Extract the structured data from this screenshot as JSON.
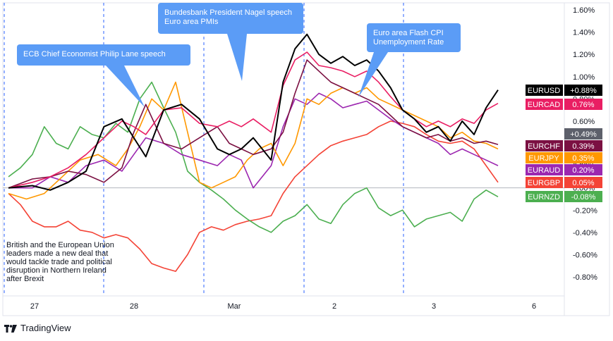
{
  "brand": {
    "name": "TradingView",
    "icon": "tradingview-logo-icon"
  },
  "notes": {
    "brexit": [
      "British and the European Union",
      "leaders made a new deal that",
      "would tackle trade and political",
      "disruption in Northern Ireland",
      "after Brexit"
    ]
  },
  "callouts": [
    {
      "lines": [
        "ECB Chief Economist Philip Lane speech"
      ]
    },
    {
      "lines": [
        "Bundesbank President Nagel speech",
        "Euro area PMIs"
      ]
    },
    {
      "lines": [
        "Euro area Flash CPI",
        "Unemployment Rate"
      ]
    }
  ],
  "colors": {
    "EURUSD": "#000000",
    "EURCAD": "#e91e63",
    "EURCHF": "#7b1042",
    "EURJPY": "#ff9800",
    "EURAUD": "#9c27b0",
    "EURGBP": "#f44336",
    "EURNZD": "#4caf50",
    "callout": "#5b9cf6",
    "separator": "#2962ff"
  },
  "chart_data": {
    "type": "line",
    "x_ticks": [
      "27",
      "28",
      "Mar",
      "2",
      "3",
      "6"
    ],
    "y_ticks": [
      "1.60%",
      "1.40%",
      "1.20%",
      "1.00%",
      "0.80%",
      "0.60%",
      "0.40%",
      "0.20%",
      "0.00%",
      "-0.20%",
      "-0.40%",
      "-0.60%",
      "-0.80%"
    ],
    "y_unit": "%",
    "ylim": [
      -1.06,
      1.6
    ],
    "x_sessions": [
      0,
      4.1
    ],
    "session_separators": [
      0.06,
      1.0,
      1.7,
      2.7,
      3.7
    ],
    "hidden_label": "+0.49%",
    "legend": [
      {
        "pair": "EURUSD",
        "value": "+0.88%"
      },
      {
        "pair": "EURCAD",
        "value": "0.76%"
      },
      {
        "pair": "EURCHF",
        "value": "0.39%"
      },
      {
        "pair": "EURJPY",
        "value": "0.35%"
      },
      {
        "pair": "EURAUD",
        "value": "0.20%"
      },
      {
        "pair": "EURGBP",
        "value": "0.05%"
      },
      {
        "pair": "EURNZD",
        "value": "-0.08%"
      }
    ],
    "series": [
      {
        "name": "EURUSD",
        "points": [
          [
            0,
            0.0
          ],
          [
            0.2,
            0.02
          ],
          [
            0.35,
            -0.02
          ],
          [
            0.5,
            0.05
          ],
          [
            0.65,
            0.15
          ],
          [
            0.8,
            0.55
          ],
          [
            0.95,
            0.62
          ],
          [
            1.05,
            0.45
          ],
          [
            1.15,
            0.28
          ],
          [
            1.3,
            0.7
          ],
          [
            1.45,
            0.75
          ],
          [
            1.6,
            0.62
          ],
          [
            1.75,
            0.35
          ],
          [
            1.85,
            0.3
          ],
          [
            1.95,
            0.35
          ],
          [
            2.05,
            0.45
          ],
          [
            2.2,
            0.25
          ],
          [
            2.3,
            0.95
          ],
          [
            2.4,
            1.25
          ],
          [
            2.5,
            1.38
          ],
          [
            2.6,
            1.2
          ],
          [
            2.7,
            1.12
          ],
          [
            2.8,
            1.18
          ],
          [
            2.9,
            1.1
          ],
          [
            3.0,
            1.15
          ],
          [
            3.1,
            1.05
          ],
          [
            3.2,
            0.9
          ],
          [
            3.3,
            0.7
          ],
          [
            3.4,
            0.62
          ],
          [
            3.5,
            0.5
          ],
          [
            3.6,
            0.55
          ],
          [
            3.7,
            0.42
          ],
          [
            3.8,
            0.6
          ],
          [
            3.9,
            0.48
          ],
          [
            4.0,
            0.72
          ],
          [
            4.1,
            0.88
          ]
        ]
      },
      {
        "name": "EURCAD",
        "points": [
          [
            0,
            0.0
          ],
          [
            0.2,
            0.05
          ],
          [
            0.35,
            0.1
          ],
          [
            0.5,
            0.18
          ],
          [
            0.65,
            0.3
          ],
          [
            0.8,
            0.45
          ],
          [
            0.95,
            0.6
          ],
          [
            1.05,
            0.55
          ],
          [
            1.15,
            0.48
          ],
          [
            1.3,
            0.7
          ],
          [
            1.45,
            0.72
          ],
          [
            1.6,
            0.58
          ],
          [
            1.75,
            0.55
          ],
          [
            1.85,
            0.6
          ],
          [
            1.95,
            0.55
          ],
          [
            2.05,
            0.62
          ],
          [
            2.2,
            0.5
          ],
          [
            2.3,
            0.92
          ],
          [
            2.4,
            1.15
          ],
          [
            2.5,
            1.22
          ],
          [
            2.6,
            1.1
          ],
          [
            2.7,
            1.08
          ],
          [
            2.8,
            1.05
          ],
          [
            2.9,
            1.0
          ],
          [
            3.0,
            1.05
          ],
          [
            3.1,
            0.95
          ],
          [
            3.2,
            0.82
          ],
          [
            3.3,
            0.7
          ],
          [
            3.4,
            0.62
          ],
          [
            3.5,
            0.55
          ],
          [
            3.6,
            0.6
          ],
          [
            3.7,
            0.55
          ],
          [
            3.8,
            0.62
          ],
          [
            3.9,
            0.58
          ],
          [
            4.0,
            0.7
          ],
          [
            4.1,
            0.76
          ]
        ]
      },
      {
        "name": "EURCHF",
        "points": [
          [
            0,
            0.0
          ],
          [
            0.2,
            0.08
          ],
          [
            0.35,
            0.1
          ],
          [
            0.5,
            0.15
          ],
          [
            0.65,
            0.12
          ],
          [
            0.8,
            0.05
          ],
          [
            0.95,
            0.18
          ],
          [
            1.05,
            0.5
          ],
          [
            1.15,
            0.75
          ],
          [
            1.3,
            0.4
          ],
          [
            1.45,
            0.35
          ],
          [
            1.6,
            0.45
          ],
          [
            1.75,
            0.55
          ],
          [
            1.85,
            0.4
          ],
          [
            1.95,
            0.35
          ],
          [
            2.05,
            0.3
          ],
          [
            2.2,
            0.35
          ],
          [
            2.3,
            0.5
          ],
          [
            2.4,
            0.85
          ],
          [
            2.5,
            1.15
          ],
          [
            2.6,
            1.05
          ],
          [
            2.7,
            0.95
          ],
          [
            2.8,
            0.9
          ],
          [
            2.9,
            0.85
          ],
          [
            3.0,
            0.8
          ],
          [
            3.1,
            0.75
          ],
          [
            3.2,
            0.65
          ],
          [
            3.3,
            0.55
          ],
          [
            3.4,
            0.5
          ],
          [
            3.5,
            0.45
          ],
          [
            3.6,
            0.48
          ],
          [
            3.7,
            0.42
          ],
          [
            3.8,
            0.45
          ],
          [
            3.9,
            0.4
          ],
          [
            4.0,
            0.42
          ],
          [
            4.1,
            0.39
          ]
        ]
      },
      {
        "name": "EURJPY",
        "points": [
          [
            0,
            -0.05
          ],
          [
            0.15,
            -0.1
          ],
          [
            0.3,
            -0.05
          ],
          [
            0.45,
            0.1
          ],
          [
            0.6,
            0.25
          ],
          [
            0.75,
            0.3
          ],
          [
            0.9,
            0.2
          ],
          [
            1.0,
            0.35
          ],
          [
            1.1,
            0.55
          ],
          [
            1.2,
            0.8
          ],
          [
            1.3,
            0.7
          ],
          [
            1.4,
            0.95
          ],
          [
            1.5,
            0.5
          ],
          [
            1.6,
            0.05
          ],
          [
            1.7,
            0.0
          ],
          [
            1.8,
            0.05
          ],
          [
            1.9,
            0.1
          ],
          [
            2.0,
            0.25
          ],
          [
            2.1,
            0.35
          ],
          [
            2.2,
            0.4
          ],
          [
            2.3,
            0.2
          ],
          [
            2.4,
            0.4
          ],
          [
            2.5,
            0.8
          ],
          [
            2.6,
            0.75
          ],
          [
            2.7,
            0.85
          ],
          [
            2.8,
            0.9
          ],
          [
            2.9,
            0.85
          ],
          [
            3.0,
            0.9
          ],
          [
            3.1,
            0.8
          ],
          [
            3.2,
            0.75
          ],
          [
            3.3,
            0.7
          ],
          [
            3.4,
            0.65
          ],
          [
            3.5,
            0.6
          ],
          [
            3.6,
            0.55
          ],
          [
            3.7,
            0.45
          ],
          [
            3.8,
            0.5
          ],
          [
            3.9,
            0.42
          ],
          [
            4.0,
            0.4
          ],
          [
            4.1,
            0.35
          ]
        ]
      },
      {
        "name": "EURAUD",
        "points": [
          [
            0,
            0.0
          ],
          [
            0.2,
            0.0
          ],
          [
            0.35,
            0.1
          ],
          [
            0.5,
            0.05
          ],
          [
            0.65,
            0.2
          ],
          [
            0.8,
            0.25
          ],
          [
            0.95,
            0.15
          ],
          [
            1.05,
            0.3
          ],
          [
            1.15,
            0.45
          ],
          [
            1.3,
            0.4
          ],
          [
            1.45,
            0.3
          ],
          [
            1.6,
            0.25
          ],
          [
            1.75,
            0.2
          ],
          [
            1.85,
            0.3
          ],
          [
            1.95,
            0.25
          ],
          [
            2.05,
            0.0
          ],
          [
            2.2,
            0.2
          ],
          [
            2.3,
            0.55
          ],
          [
            2.4,
            0.8
          ],
          [
            2.5,
            0.75
          ],
          [
            2.6,
            0.85
          ],
          [
            2.7,
            0.8
          ],
          [
            2.8,
            0.72
          ],
          [
            2.9,
            0.75
          ],
          [
            3.0,
            0.78
          ],
          [
            3.1,
            0.7
          ],
          [
            3.2,
            0.62
          ],
          [
            3.3,
            0.55
          ],
          [
            3.4,
            0.5
          ],
          [
            3.5,
            0.45
          ],
          [
            3.6,
            0.4
          ],
          [
            3.7,
            0.3
          ],
          [
            3.8,
            0.35
          ],
          [
            3.9,
            0.3
          ],
          [
            4.0,
            0.25
          ],
          [
            4.1,
            0.2
          ]
        ]
      },
      {
        "name": "EURGBP",
        "points": [
          [
            0,
            -0.05
          ],
          [
            0.1,
            -0.15
          ],
          [
            0.2,
            -0.3
          ],
          [
            0.3,
            -0.35
          ],
          [
            0.4,
            -0.35
          ],
          [
            0.5,
            -0.3
          ],
          [
            0.6,
            -0.38
          ],
          [
            0.7,
            -0.4
          ],
          [
            0.8,
            -0.45
          ],
          [
            0.9,
            -0.42
          ],
          [
            1.0,
            -0.45
          ],
          [
            1.1,
            -0.55
          ],
          [
            1.2,
            -0.68
          ],
          [
            1.3,
            -0.72
          ],
          [
            1.4,
            -0.75
          ],
          [
            1.5,
            -0.6
          ],
          [
            1.6,
            -0.4
          ],
          [
            1.7,
            -0.35
          ],
          [
            1.8,
            -0.38
          ],
          [
            1.9,
            -0.33
          ],
          [
            2.0,
            -0.3
          ],
          [
            2.1,
            -0.28
          ],
          [
            2.2,
            -0.25
          ],
          [
            2.3,
            -0.05
          ],
          [
            2.4,
            0.1
          ],
          [
            2.5,
            0.2
          ],
          [
            2.6,
            0.3
          ],
          [
            2.7,
            0.38
          ],
          [
            2.8,
            0.42
          ],
          [
            2.9,
            0.45
          ],
          [
            3.0,
            0.48
          ],
          [
            3.1,
            0.55
          ],
          [
            3.2,
            0.6
          ],
          [
            3.3,
            0.58
          ],
          [
            3.4,
            0.55
          ],
          [
            3.5,
            0.48
          ],
          [
            3.6,
            0.42
          ],
          [
            3.7,
            0.4
          ],
          [
            3.8,
            0.42
          ],
          [
            3.9,
            0.35
          ],
          [
            4.0,
            0.2
          ],
          [
            4.1,
            0.05
          ]
        ]
      },
      {
        "name": "EURNZD",
        "points": [
          [
            0,
            0.1
          ],
          [
            0.1,
            0.18
          ],
          [
            0.2,
            0.3
          ],
          [
            0.3,
            0.55
          ],
          [
            0.4,
            0.4
          ],
          [
            0.5,
            0.35
          ],
          [
            0.6,
            0.55
          ],
          [
            0.7,
            0.48
          ],
          [
            0.8,
            0.45
          ],
          [
            0.9,
            0.58
          ],
          [
            1.0,
            0.5
          ],
          [
            1.1,
            0.8
          ],
          [
            1.2,
            0.95
          ],
          [
            1.3,
            0.72
          ],
          [
            1.4,
            0.5
          ],
          [
            1.5,
            0.15
          ],
          [
            1.6,
            0.05
          ],
          [
            1.7,
            -0.02
          ],
          [
            1.8,
            -0.1
          ],
          [
            1.9,
            -0.2
          ],
          [
            2.0,
            -0.28
          ],
          [
            2.1,
            -0.35
          ],
          [
            2.2,
            -0.4
          ],
          [
            2.3,
            -0.3
          ],
          [
            2.4,
            -0.25
          ],
          [
            2.5,
            -0.15
          ],
          [
            2.6,
            -0.28
          ],
          [
            2.7,
            -0.32
          ],
          [
            2.8,
            -0.15
          ],
          [
            2.9,
            -0.05
          ],
          [
            3.0,
            0.0
          ],
          [
            3.1,
            -0.18
          ],
          [
            3.2,
            -0.25
          ],
          [
            3.3,
            -0.2
          ],
          [
            3.4,
            -0.35
          ],
          [
            3.5,
            -0.28
          ],
          [
            3.6,
            -0.25
          ],
          [
            3.7,
            -0.22
          ],
          [
            3.8,
            -0.3
          ],
          [
            3.9,
            -0.1
          ],
          [
            4.0,
            -0.02
          ],
          [
            4.1,
            -0.08
          ]
        ]
      }
    ]
  }
}
